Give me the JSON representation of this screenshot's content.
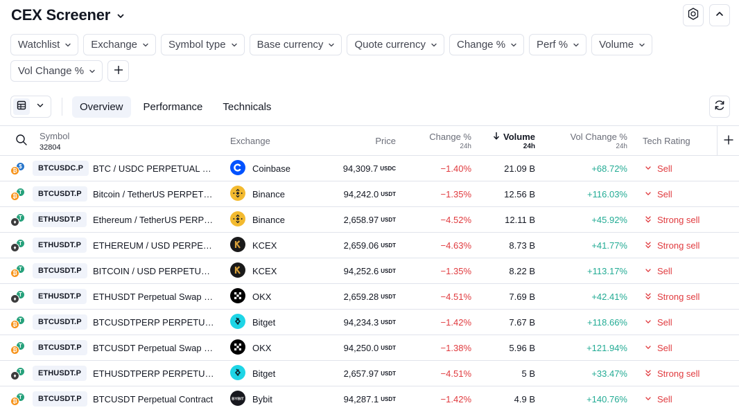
{
  "header": {
    "title": "CEX Screener"
  },
  "filters": [
    {
      "label": "Watchlist"
    },
    {
      "label": "Exchange"
    },
    {
      "label": "Symbol type"
    },
    {
      "label": "Base currency"
    },
    {
      "label": "Quote currency"
    },
    {
      "label": "Change %"
    },
    {
      "label": "Perf %"
    },
    {
      "label": "Volume"
    },
    {
      "label": "Vol Change %"
    }
  ],
  "tabs": [
    {
      "label": "Overview",
      "active": true
    },
    {
      "label": "Performance",
      "active": false
    },
    {
      "label": "Technicals",
      "active": false
    }
  ],
  "columns": {
    "symbol": {
      "label": "Symbol",
      "count": "32804"
    },
    "exchange": {
      "label": "Exchange"
    },
    "price": {
      "label": "Price"
    },
    "change": {
      "label": "Change %",
      "sub": "24h"
    },
    "volume": {
      "label": "Volume",
      "sub": "24h",
      "sort": "desc"
    },
    "vol_change": {
      "label": "Vol Change %",
      "sub": "24h"
    },
    "tech_rating": {
      "label": "Tech Rating"
    }
  },
  "colors": {
    "negative": "#e03a3e",
    "positive": "#22ab94",
    "btc": "#f7931a",
    "eth": "#3c3c3d",
    "usdc": "#2775ca",
    "usdt": "#26a17b"
  },
  "rows": [
    {
      "base": "btc",
      "quote": "usdc",
      "ticker": "BTCUSDC.P",
      "description": "BTC / USDC PERPETUAL CONTRACT",
      "exchange": "Coinbase",
      "exchange_icon": "coinbase-icon",
      "price": "94,309.7",
      "unit": "USDC",
      "change": "−1.40%",
      "volume": "21.09 B",
      "vol_change": "+68.72%",
      "rating": "Sell",
      "rating_icon": "chevron-down-icon"
    },
    {
      "base": "btc",
      "quote": "usdt",
      "ticker": "BTCUSDT.P",
      "description": "Bitcoin / TetherUS PERPETUAL CONTRACT",
      "exchange": "Binance",
      "exchange_icon": "binance-icon",
      "price": "94,242.0",
      "unit": "USDT",
      "change": "−1.35%",
      "volume": "12.56 B",
      "vol_change": "+116.03%",
      "rating": "Sell",
      "rating_icon": "chevron-down-icon"
    },
    {
      "base": "eth",
      "quote": "usdt",
      "ticker": "ETHUSDT.P",
      "description": "Ethereum / TetherUS PERPETUAL CONTRACT",
      "exchange": "Binance",
      "exchange_icon": "binance-icon",
      "price": "2,658.97",
      "unit": "USDT",
      "change": "−4.52%",
      "volume": "12.11 B",
      "vol_change": "+45.92%",
      "rating": "Strong sell",
      "rating_icon": "double-chevron-down-icon"
    },
    {
      "base": "eth",
      "quote": "usdt",
      "ticker": "ETHUSDT.P",
      "description": "ETHEREUM / USD PERPETUAL CONTRACT",
      "exchange": "KCEX",
      "exchange_icon": "kcex-icon",
      "price": "2,659.06",
      "unit": "USDT",
      "change": "−4.63%",
      "volume": "8.73 B",
      "vol_change": "+41.77%",
      "rating": "Strong sell",
      "rating_icon": "double-chevron-down-icon"
    },
    {
      "base": "btc",
      "quote": "usdt",
      "ticker": "BTCUSDT.P",
      "description": "BITCOIN / USD PERPETUAL CONTRACT",
      "exchange": "KCEX",
      "exchange_icon": "kcex-icon",
      "price": "94,252.6",
      "unit": "USDT",
      "change": "−1.35%",
      "volume": "8.22 B",
      "vol_change": "+113.17%",
      "rating": "Sell",
      "rating_icon": "chevron-down-icon"
    },
    {
      "base": "eth",
      "quote": "usdt",
      "ticker": "ETHUSDT.P",
      "description": "ETHUSDT Perpetual Swap Contract",
      "exchange": "OKX",
      "exchange_icon": "okx-icon",
      "price": "2,659.28",
      "unit": "USDT",
      "change": "−4.51%",
      "volume": "7.69 B",
      "vol_change": "+42.41%",
      "rating": "Strong sell",
      "rating_icon": "double-chevron-down-icon"
    },
    {
      "base": "btc",
      "quote": "usdt",
      "ticker": "BTCUSDT.P",
      "description": "BTCUSDTPERP PERPETUAL CONTRACT",
      "exchange": "Bitget",
      "exchange_icon": "bitget-icon",
      "price": "94,234.3",
      "unit": "USDT",
      "change": "−1.42%",
      "volume": "7.67 B",
      "vol_change": "+118.66%",
      "rating": "Sell",
      "rating_icon": "chevron-down-icon"
    },
    {
      "base": "btc",
      "quote": "usdt",
      "ticker": "BTCUSDT.P",
      "description": "BTCUSDT Perpetual Swap Contract",
      "exchange": "OKX",
      "exchange_icon": "okx-icon",
      "price": "94,250.0",
      "unit": "USDT",
      "change": "−1.38%",
      "volume": "5.96 B",
      "vol_change": "+121.94%",
      "rating": "Sell",
      "rating_icon": "chevron-down-icon"
    },
    {
      "base": "eth",
      "quote": "usdt",
      "ticker": "ETHUSDT.P",
      "description": "ETHUSDTPERP PERPETUAL CONTRACT",
      "exchange": "Bitget",
      "exchange_icon": "bitget-icon",
      "price": "2,657.97",
      "unit": "USDT",
      "change": "−4.51%",
      "volume": "5 B",
      "vol_change": "+33.47%",
      "rating": "Strong sell",
      "rating_icon": "double-chevron-down-icon"
    },
    {
      "base": "btc",
      "quote": "usdt",
      "ticker": "BTCUSDT.P",
      "description": "BTCUSDT Perpetual Contract",
      "exchange": "Bybit",
      "exchange_icon": "bybit-icon",
      "price": "94,287.1",
      "unit": "USDT",
      "change": "−1.42%",
      "volume": "4.9 B",
      "vol_change": "+140.76%",
      "rating": "Sell",
      "rating_icon": "chevron-down-icon"
    }
  ]
}
